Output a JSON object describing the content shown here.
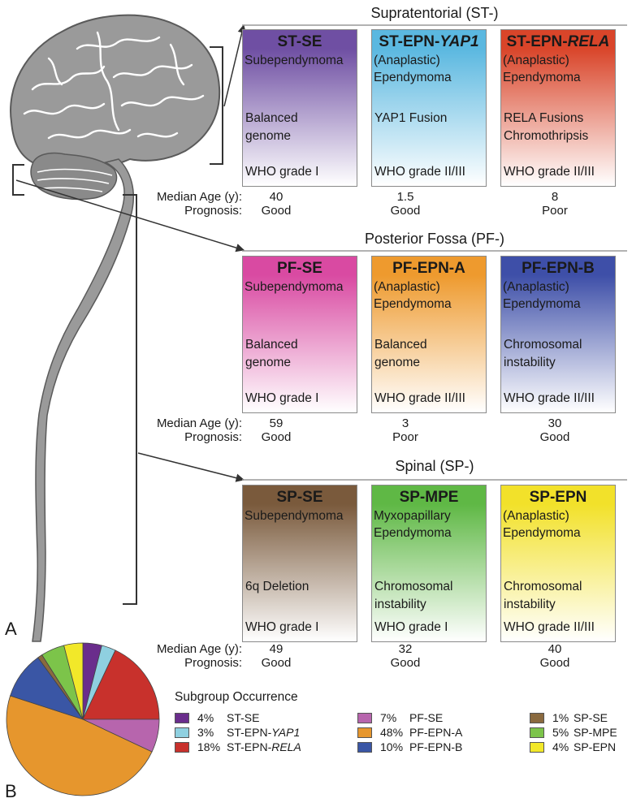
{
  "panel_a": "A",
  "panel_b": "B",
  "sections": [
    {
      "title": "Supratentorial (ST-)",
      "median_label": "Median Age (y):",
      "prognosis_label": "Prognosis:",
      "boxes": [
        {
          "code_main": "ST-SE",
          "code_italic": "",
          "desc": "Subependymoma",
          "genetics": "Balanced\ngenome",
          "grade": "WHO grade I",
          "age": "40",
          "prognosis": "Good",
          "color": "#6f4fa3"
        },
        {
          "code_main": "ST-EPN-",
          "code_italic": "YAP1",
          "desc": "(Anaplastic)\nEpendymoma",
          "genetics": "YAP1 Fusion",
          "grade": "WHO grade II/III",
          "age": "1.5",
          "prognosis": "Good",
          "color": "#5bb8e0"
        },
        {
          "code_main": "ST-EPN-",
          "code_italic": "RELA",
          "desc": "(Anaplastic)\nEpendymoma",
          "genetics": "RELA Fusions\nChromothripsis",
          "grade": "WHO grade II/III",
          "age": "8",
          "prognosis": "Poor",
          "color": "#d9452a"
        }
      ]
    },
    {
      "title": "Posterior Fossa (PF-)",
      "median_label": "Median Age (y):",
      "prognosis_label": "Prognosis:",
      "boxes": [
        {
          "code_main": "PF-SE",
          "code_italic": "",
          "desc": "Subependymoma",
          "genetics": "Balanced\ngenome",
          "grade": "WHO grade I",
          "age": "59",
          "prognosis": "Good",
          "color": "#d94aa2"
        },
        {
          "code_main": "PF-EPN-A",
          "code_italic": "",
          "desc": "(Anaplastic)\nEpendymoma",
          "genetics": "Balanced\ngenome",
          "grade": "WHO grade II/III",
          "age": "3",
          "prognosis": "Poor",
          "color": "#ee9a2e"
        },
        {
          "code_main": "PF-EPN-B",
          "code_italic": "",
          "desc": "(Anaplastic)\nEpendymoma",
          "genetics": "Chromosomal\ninstability",
          "grade": "WHO grade II/III",
          "age": "30",
          "prognosis": "Good",
          "color": "#3e4fa8"
        }
      ]
    },
    {
      "title": "Spinal (SP-)",
      "median_label": "Median Age (y):",
      "prognosis_label": "Prognosis:",
      "boxes": [
        {
          "code_main": "SP-SE",
          "code_italic": "",
          "desc": "Subependymoma",
          "genetics": "6q Deletion",
          "grade": "WHO grade I",
          "age": "49",
          "prognosis": "Good",
          "color": "#7a5a3c"
        },
        {
          "code_main": "SP-MPE",
          "code_italic": "",
          "desc": "Myxopapillary\nEpendymoma",
          "genetics": "Chromosomal\ninstability",
          "grade": "WHO grade I",
          "age": "32",
          "prognosis": "Good",
          "color": "#5fb845"
        },
        {
          "code_main": "SP-EPN",
          "code_italic": "",
          "desc": "(Anaplastic)\nEpendymoma",
          "genetics": "Chromosomal\ninstability",
          "grade": "WHO grade II/III",
          "age": "40",
          "prognosis": "Good",
          "color": "#f2e12a"
        }
      ]
    }
  ],
  "legend_title": "Subgroup Occurrence",
  "pie": [
    {
      "name": "ST-SE",
      "name_italic": "",
      "pct": 4,
      "label": "4%",
      "color": "#6a2d8c"
    },
    {
      "name": "ST-EPN-",
      "name_italic": "YAP1",
      "pct": 3,
      "label": "3%",
      "color": "#8fd0e0"
    },
    {
      "name": "ST-EPN-",
      "name_italic": "RELA",
      "pct": 18,
      "label": "18%",
      "color": "#c8312c"
    },
    {
      "name": "PF-SE",
      "name_italic": "",
      "pct": 7,
      "label": "7%",
      "color": "#b765ad"
    },
    {
      "name": "PF-EPN-A",
      "name_italic": "",
      "pct": 48,
      "label": "48%",
      "color": "#e6962d"
    },
    {
      "name": "PF-EPN-B",
      "name_italic": "",
      "pct": 10,
      "label": "10%",
      "color": "#3a56a5"
    },
    {
      "name": "SP-SE",
      "name_italic": "",
      "pct": 1,
      "label": "1%",
      "color": "#8a6a3f"
    },
    {
      "name": "SP-MPE",
      "name_italic": "",
      "pct": 5,
      "label": "5%",
      "color": "#7cc44a"
    },
    {
      "name": "SP-EPN",
      "name_italic": "",
      "pct": 4,
      "label": "4%",
      "color": "#f2e829"
    }
  ]
}
